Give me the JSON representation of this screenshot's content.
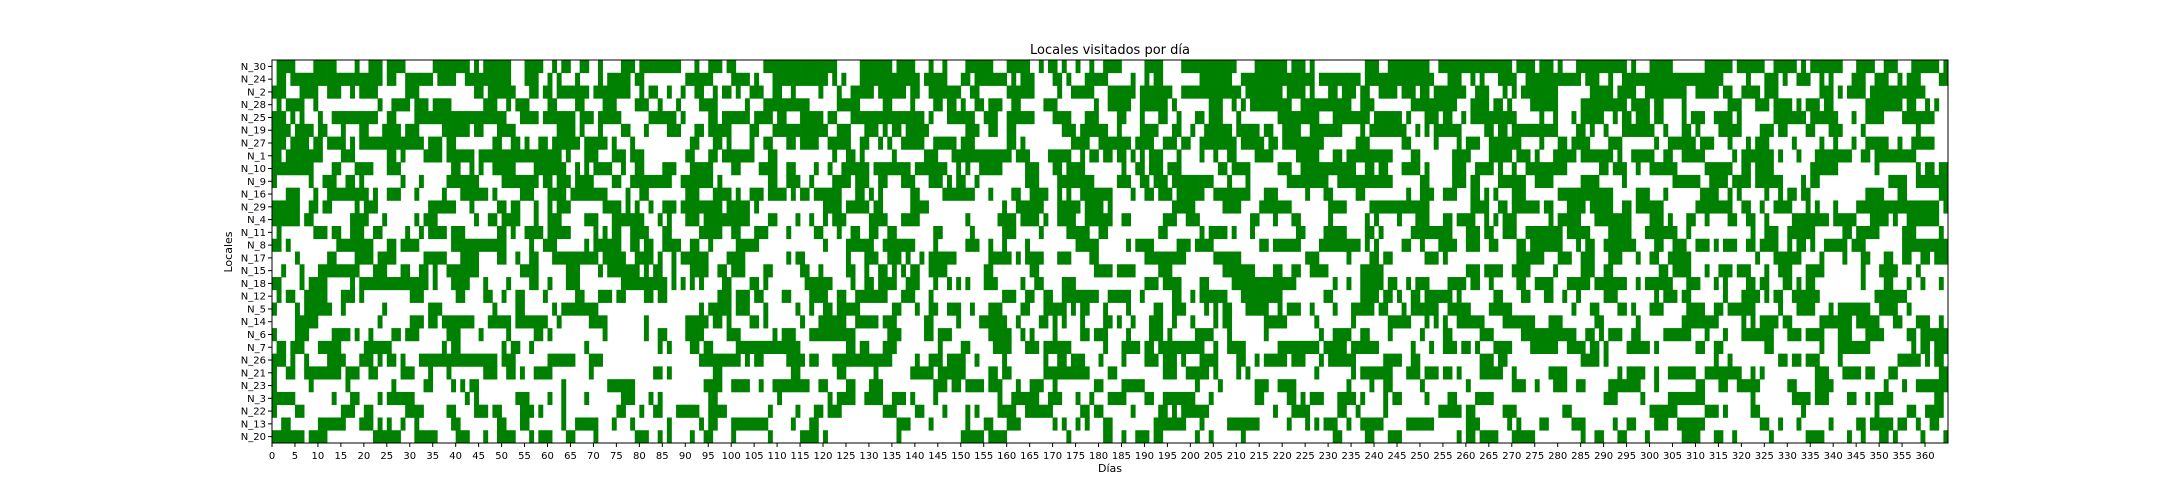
{
  "chart_data": {
    "type": "heatmap",
    "title": "Locales visitados por día",
    "xlabel": "Días",
    "ylabel": "Locales",
    "xlim": [
      0,
      365
    ],
    "x_tick_step": 5,
    "locales": [
      "N_30",
      "N_24",
      "N_2",
      "N_28",
      "N_25",
      "N_19",
      "N_27",
      "N_1",
      "N_10",
      "N_9",
      "N_16",
      "N_29",
      "N_4",
      "N_11",
      "N_8",
      "N_17",
      "N_15",
      "N_18",
      "N_12",
      "N_5",
      "N_14",
      "N_6",
      "N_7",
      "N_26",
      "N_21",
      "N_23",
      "N_3",
      "N_22",
      "N_13",
      "N_20"
    ],
    "visit_rates": [
      0.62,
      0.6,
      0.59,
      0.58,
      0.57,
      0.56,
      0.55,
      0.54,
      0.53,
      0.52,
      0.51,
      0.5,
      0.49,
      0.48,
      0.47,
      0.46,
      0.45,
      0.44,
      0.43,
      0.42,
      0.41,
      0.4,
      0.39,
      0.38,
      0.37,
      0.36,
      0.35,
      0.34,
      0.33,
      0.32
    ],
    "visited_color": "#008000",
    "not_visited_color": "#ffffff",
    "grid": false,
    "legend": "none"
  }
}
